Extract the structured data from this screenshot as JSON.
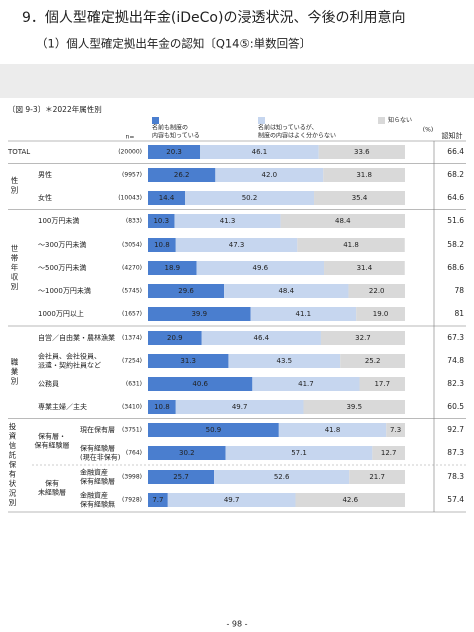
{
  "header": {
    "title": "9．個人型確定拠出年金(iDeCo)の浸透状況、今後の利用意向",
    "subtitle": "（1）個人型確定拠出年金の認知〔Q14⑤:単数回答〕"
  },
  "figure_label": "〔図 9-3〕＊2022年属性別",
  "page_number": "- 98 -",
  "chart_data": {
    "type": "bar",
    "orientation": "horizontal",
    "stacked": true,
    "n_label": "n=",
    "unit_label": "(%)",
    "xlim": [
      0,
      100
    ],
    "groups": [
      "性別",
      "世帯年収別",
      "職業別",
      "投資信託保有状況別"
    ],
    "subgroups": [
      [
        "保有層・",
        "保有経験層"
      ],
      [
        "保有",
        "未経験層"
      ]
    ],
    "categories": [
      [
        "TOTAL"
      ],
      [
        "男性"
      ],
      [
        "女性"
      ],
      [
        "100万円未満"
      ],
      [
        "～300万円未満"
      ],
      [
        "～500万円未満"
      ],
      [
        "～1000万円未満"
      ],
      [
        "1000万円以上"
      ],
      [
        "自営／自由業・農林漁業"
      ],
      [
        "会社員、会社役員、",
        "派遣・契約社員など"
      ],
      [
        "公務員"
      ],
      [
        "専業主婦／主夫"
      ],
      [
        "現在保有層"
      ],
      [
        "保有経験層",
        "(現在非保有)"
      ],
      [
        "金融資産",
        "保有経験層"
      ],
      [
        "金融資産",
        "保有経験無"
      ]
    ],
    "n": [
      "(20000)",
      "(9957)",
      "(10043)",
      "(833)",
      "(3054)",
      "(4270)",
      "(5745)",
      "(1657)",
      "(1374)",
      "(7254)",
      "(631)",
      "(3410)",
      "(3751)",
      "(764)",
      "(3998)",
      "(7928)"
    ],
    "series": [
      {
        "name": [
          "名前も制度の",
          "内容も知っている"
        ],
        "color": "#4a7ecf",
        "values": [
          20.3,
          26.2,
          14.4,
          10.3,
          10.8,
          18.9,
          29.6,
          39.9,
          20.9,
          31.3,
          40.6,
          10.8,
          50.9,
          30.2,
          25.7,
          7.7
        ]
      },
      {
        "name": [
          "名前は知っているが、",
          "制度の内容はよく分からない"
        ],
        "color": "#c6d6ef",
        "values": [
          46.1,
          42.0,
          50.2,
          41.3,
          47.3,
          49.6,
          48.4,
          41.1,
          46.4,
          43.5,
          41.7,
          49.7,
          41.8,
          57.1,
          52.6,
          49.7
        ]
      },
      {
        "name": [
          "知らない"
        ],
        "color": "#d9d9d9",
        "values": [
          33.6,
          31.8,
          35.4,
          48.4,
          41.8,
          31.4,
          22.0,
          19.0,
          32.7,
          25.2,
          17.7,
          39.5,
          7.3,
          12.7,
          21.7,
          42.6
        ]
      }
    ],
    "value_labels": [
      [
        "20.3",
        "26.2",
        "14.4",
        "10.3",
        "10.8",
        "18.9",
        "29.6",
        "39.9",
        "20.9",
        "31.3",
        "40.6",
        "10.8",
        "50.9",
        "30.2",
        "25.7",
        "7.7"
      ],
      [
        "46.1",
        "42.0",
        "50.2",
        "41.3",
        "47.3",
        "49.6",
        "48.4",
        "41.1",
        "46.4",
        "43.5",
        "41.7",
        "49.7",
        "41.8",
        "57.1",
        "52.6",
        "49.7"
      ],
      [
        "33.6",
        "31.8",
        "35.4",
        "48.4",
        "41.8",
        "31.4",
        "22.0",
        "19.0",
        "32.7",
        "25.2",
        "17.7",
        "39.5",
        "7.3",
        "12.7",
        "21.7",
        "42.6"
      ]
    ],
    "totals": {
      "name": "認知計",
      "values": [
        66.4,
        68.2,
        64.6,
        51.6,
        58.2,
        68.6,
        78.0,
        81.0,
        67.3,
        74.8,
        82.3,
        60.5,
        92.7,
        87.3,
        78.3,
        57.4
      ]
    }
  }
}
